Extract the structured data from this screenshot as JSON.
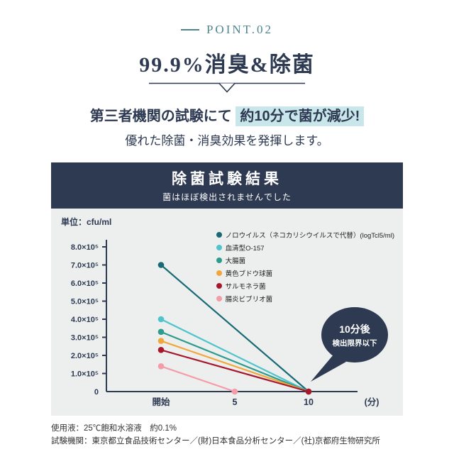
{
  "point_label": "POINT.02",
  "heading": "99.9%消臭&除菌",
  "lead_prefix": "第三者機関の試験にて",
  "lead_highlight": "約10分で菌が減少!",
  "lead_line2": "優れた除菌・消臭効果を発揮します。",
  "colors": {
    "navy": "#2d3a52",
    "teal_accent": "#4d858c",
    "highlight": "#c9e7ea",
    "panel_bg": "#edefef"
  },
  "panel": {
    "title": "除菌試験結果",
    "subtitle": "菌はほぼ検出されませんでした",
    "unit_label": "単位：cfu/ml",
    "bubble_line1": "10分後",
    "bubble_line2": "検出限界以下"
  },
  "footnotes": [
    "使用液：25℃飽和水溶液　約0.1%",
    "試験機関：東京都立食品技術センター／(財)日本食品分析センター／(社)京都府生物研究所"
  ],
  "chart_data": {
    "type": "line",
    "title": "除菌試験結果",
    "subtitle": "菌はほぼ検出されませんでした",
    "ylabel": "cfu/ml",
    "unit": "単位：cfu/ml",
    "ylim": [
      0,
      800000
    ],
    "y_tick_labels": [
      "0",
      "1.0×10⁵",
      "2.0×10⁵",
      "3.0×10⁵",
      "4.0×10⁵",
      "5.0×10⁵",
      "6.0×10⁵",
      "7.0×10⁵",
      "8.0×10⁵"
    ],
    "x": [
      0,
      5,
      10
    ],
    "x_tick_labels": [
      "開始",
      "5",
      "10"
    ],
    "x_axis_suffix": "(分)",
    "legend_position": "top-right",
    "grid": false,
    "annotation": "10分後 検出限界以下",
    "series": [
      {
        "name": "ノロウイルス（ネコカリシウイルスで代替）(logTcl5/ml)",
        "color": "#176a73",
        "points": [
          [
            0,
            700000
          ],
          [
            10,
            0
          ]
        ]
      },
      {
        "name": "血清型O-157",
        "color": "#4fc4ca",
        "points": [
          [
            0,
            400000
          ],
          [
            10,
            0
          ]
        ]
      },
      {
        "name": "大腸菌",
        "color": "#2c9c8c",
        "points": [
          [
            0,
            330000
          ],
          [
            10,
            0
          ]
        ]
      },
      {
        "name": "黄色ブドウ球菌",
        "color": "#f0a83b",
        "points": [
          [
            0,
            280000
          ],
          [
            10,
            0
          ]
        ]
      },
      {
        "name": "サルモネラ菌",
        "color": "#a8182d",
        "points": [
          [
            0,
            230000
          ],
          [
            10,
            0
          ]
        ]
      },
      {
        "name": "腸炎ビブリオ菌",
        "color": "#f59ca9",
        "points": [
          [
            0,
            140000
          ],
          [
            5,
            0
          ]
        ]
      }
    ]
  }
}
